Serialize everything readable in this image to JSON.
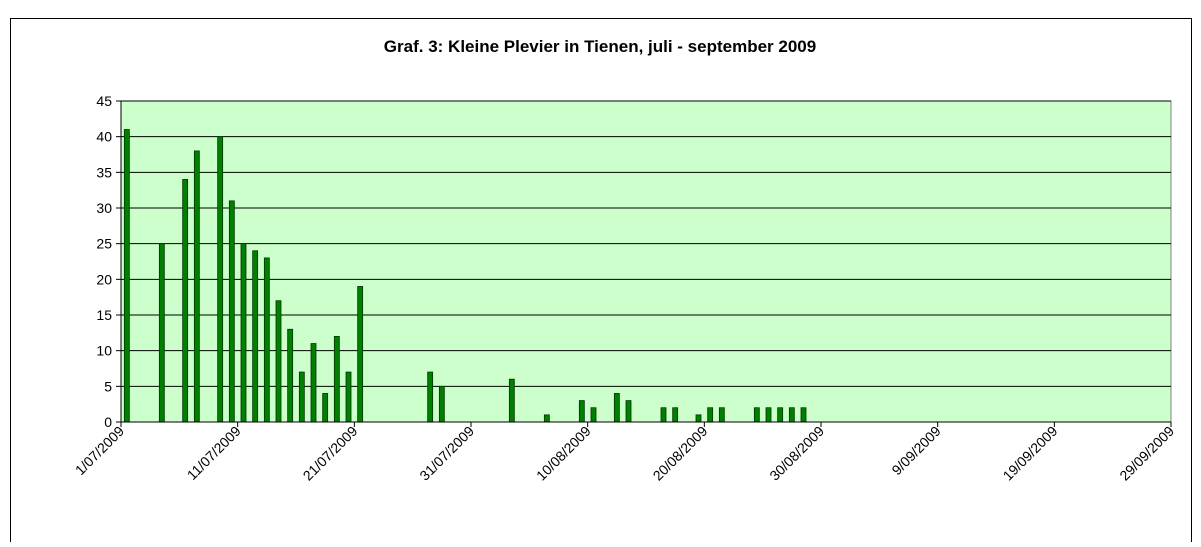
{
  "chart_data": {
    "type": "bar",
    "title": "Graf. 3: Kleine Plevier in Tienen, juli - september 2009",
    "x": [
      "1/07/2009",
      "4/07/2009",
      "6/07/2009",
      "7/07/2009",
      "9/07/2009",
      "10/07/2009",
      "11/07/2009",
      "12/07/2009",
      "13/07/2009",
      "14/07/2009",
      "15/07/2009",
      "16/07/2009",
      "17/07/2009",
      "18/07/2009",
      "19/07/2009",
      "20/07/2009",
      "21/07/2009",
      "27/07/2009",
      "28/07/2009",
      "3/08/2009",
      "6/08/2009",
      "9/08/2009",
      "10/08/2009",
      "12/08/2009",
      "13/08/2009",
      "16/08/2009",
      "17/08/2009",
      "19/08/2009",
      "20/08/2009",
      "21/08/2009",
      "24/08/2009",
      "25/08/2009",
      "26/08/2009",
      "27/08/2009",
      "28/08/2009"
    ],
    "values": [
      41,
      25,
      34,
      38,
      40,
      31,
      25,
      24,
      23,
      17,
      13,
      7,
      11,
      4,
      12,
      7,
      19,
      7,
      5,
      6,
      1,
      3,
      2,
      4,
      3,
      2,
      2,
      1,
      2,
      2,
      2,
      2,
      2,
      2,
      2
    ],
    "color": "#008000",
    "xlim": [
      "1/07/2009",
      "29/09/2009"
    ],
    "xticks": [
      "1/07/2009",
      "11/07/2009",
      "21/07/2009",
      "31/07/2009",
      "10/08/2009",
      "20/08/2009",
      "30/08/2009",
      "9/09/2009",
      "19/09/2009",
      "29/09/2009"
    ],
    "ylim": [
      0,
      45
    ],
    "yticks": [
      0,
      5,
      10,
      15,
      20,
      25,
      30,
      35,
      40,
      45
    ],
    "grid": true,
    "plot_background": "#ccffcc"
  }
}
